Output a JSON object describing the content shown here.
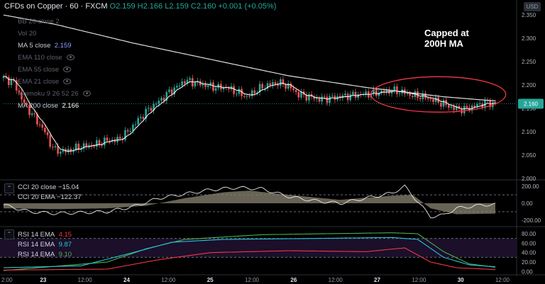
{
  "header": {
    "symbol": "CFDs on Copper · 60 · FXCM",
    "ohlc": "O2.159 H2.166 L2.159 C2.160 +0.001 (+0.05%)"
  },
  "currency_badge": "USD",
  "indicators": [
    {
      "label": "BB 20 close 2",
      "value": "",
      "visible": false
    },
    {
      "label": "Vol 20",
      "value": "",
      "visible": false
    },
    {
      "label": "MA 5 close",
      "value": "2.159",
      "visible": true
    },
    {
      "label": "EMA 110 close",
      "value": "",
      "visible": false
    },
    {
      "label": "EMA 55 close",
      "value": "",
      "visible": false
    },
    {
      "label": "EMA 21 close",
      "value": "",
      "visible": false
    },
    {
      "label": "Ichimoku 9 26 52 26",
      "value": "",
      "visible": false
    },
    {
      "label": "MA 200 close",
      "value": "2.166",
      "visible": true
    }
  ],
  "cci_pane": {
    "line1": "CCI 20 close  −15.04",
    "line2": "CCI 20 EMA  −122.37",
    "ticks": [
      "200.00",
      "0.00",
      "-200.00"
    ]
  },
  "rsi_pane": {
    "line1_label": "RSI 14 EMA",
    "line1_value": "4.15",
    "line2_label": "RSI 14 EMA",
    "line2_value": "9.87",
    "line3_label": "RSI 14 EMA",
    "line3_value": "9.10",
    "ticks": [
      "80.00",
      "60.00",
      "40.00",
      "20.00",
      "0.00"
    ]
  },
  "annotation": {
    "line1": "Capped at",
    "line2": "200H MA"
  },
  "colors": {
    "up": "#26a69a",
    "down": "#ef5350",
    "ma5": "#ffffff",
    "ma200": "#e0e0e0",
    "ellipse": "#f23645",
    "price_tag": "#26a69a",
    "rsi_fast": "#f23645",
    "rsi_mid": "#26c6da",
    "rsi_slow": "#4caf50"
  },
  "chart_data": {
    "type": "candlestick",
    "price_axis": {
      "ticks": [
        "2.350",
        "2.300",
        "2.250",
        "2.200",
        "2.150",
        "2.100",
        "2.050",
        "2.000"
      ],
      "ylim": [
        2.0,
        2.37
      ]
    },
    "last_price": "2.160",
    "x_ticks": [
      "2:00",
      "23",
      "12:00",
      "24",
      "12:00",
      "25",
      "12:00",
      "26",
      "12:00",
      "27",
      "12:00",
      "30",
      "12:00"
    ],
    "close_anchors": [
      [
        0,
        2.215
      ],
      [
        4,
        2.205
      ],
      [
        8,
        2.16
      ],
      [
        12,
        2.13
      ],
      [
        16,
        2.1
      ],
      [
        18,
        2.075
      ],
      [
        20,
        2.06
      ],
      [
        24,
        2.058
      ],
      [
        30,
        2.068
      ],
      [
        36,
        2.073
      ],
      [
        40,
        2.082
      ],
      [
        44,
        2.082
      ],
      [
        48,
        2.1
      ],
      [
        52,
        2.125
      ],
      [
        56,
        2.148
      ],
      [
        60,
        2.165
      ],
      [
        64,
        2.185
      ],
      [
        68,
        2.2
      ],
      [
        70,
        2.21
      ],
      [
        74,
        2.205
      ],
      [
        78,
        2.2
      ],
      [
        82,
        2.195
      ],
      [
        86,
        2.195
      ],
      [
        90,
        2.185
      ],
      [
        94,
        2.175
      ],
      [
        98,
        2.19
      ],
      [
        102,
        2.2
      ],
      [
        106,
        2.205
      ],
      [
        110,
        2.198
      ],
      [
        114,
        2.18
      ],
      [
        118,
        2.175
      ],
      [
        122,
        2.17
      ],
      [
        126,
        2.172
      ],
      [
        130,
        2.175
      ],
      [
        134,
        2.178
      ],
      [
        138,
        2.18
      ],
      [
        142,
        2.182
      ],
      [
        146,
        2.185
      ],
      [
        150,
        2.188
      ],
      [
        154,
        2.185
      ],
      [
        158,
        2.178
      ],
      [
        162,
        2.175
      ],
      [
        166,
        2.168
      ],
      [
        170,
        2.16
      ],
      [
        174,
        2.15
      ],
      [
        178,
        2.148
      ],
      [
        182,
        2.155
      ],
      [
        186,
        2.162
      ],
      [
        190,
        2.16
      ]
    ],
    "ma200_anchors": [
      [
        0,
        2.35
      ],
      [
        20,
        2.33
      ],
      [
        50,
        2.29
      ],
      [
        80,
        2.255
      ],
      [
        110,
        2.22
      ],
      [
        140,
        2.195
      ],
      [
        170,
        2.175
      ],
      [
        190,
        2.166
      ]
    ],
    "cci_anchors": [
      [
        0,
        -20
      ],
      [
        10,
        -100
      ],
      [
        20,
        -120
      ],
      [
        40,
        -100
      ],
      [
        50,
        -40
      ],
      [
        60,
        60
      ],
      [
        70,
        110
      ],
      [
        80,
        160
      ],
      [
        90,
        185
      ],
      [
        100,
        170
      ],
      [
        110,
        80
      ],
      [
        120,
        30
      ],
      [
        130,
        0
      ],
      [
        140,
        60
      ],
      [
        150,
        120
      ],
      [
        155,
        200
      ],
      [
        160,
        20
      ],
      [
        165,
        -160
      ],
      [
        170,
        -140
      ],
      [
        175,
        -60
      ],
      [
        180,
        -40
      ],
      [
        185,
        -20
      ],
      [
        190,
        -15
      ]
    ],
    "cci_ema_anchors": [
      [
        0,
        -60
      ],
      [
        20,
        -70
      ],
      [
        40,
        -60
      ],
      [
        55,
        -30
      ],
      [
        70,
        60
      ],
      [
        85,
        130
      ],
      [
        95,
        150
      ],
      [
        110,
        100
      ],
      [
        130,
        40
      ],
      [
        150,
        90
      ],
      [
        158,
        100
      ],
      [
        165,
        -60
      ],
      [
        175,
        -130
      ],
      [
        190,
        -122
      ]
    ],
    "rsi_fast_anchors": [
      [
        0,
        3
      ],
      [
        40,
        5
      ],
      [
        60,
        25
      ],
      [
        80,
        40
      ],
      [
        110,
        44
      ],
      [
        140,
        42
      ],
      [
        155,
        50
      ],
      [
        165,
        20
      ],
      [
        175,
        8
      ],
      [
        190,
        4
      ]
    ],
    "rsi_mid_anchors": [
      [
        0,
        8
      ],
      [
        30,
        12
      ],
      [
        50,
        40
      ],
      [
        65,
        62
      ],
      [
        85,
        68
      ],
      [
        120,
        70
      ],
      [
        150,
        72
      ],
      [
        160,
        68
      ],
      [
        170,
        30
      ],
      [
        180,
        14
      ],
      [
        190,
        10
      ]
    ],
    "rsi_slow_anchors": [
      [
        0,
        2
      ],
      [
        40,
        20
      ],
      [
        55,
        48
      ],
      [
        70,
        68
      ],
      [
        100,
        78
      ],
      [
        150,
        82
      ],
      [
        160,
        80
      ],
      [
        170,
        42
      ],
      [
        180,
        16
      ],
      [
        190,
        9
      ]
    ]
  }
}
